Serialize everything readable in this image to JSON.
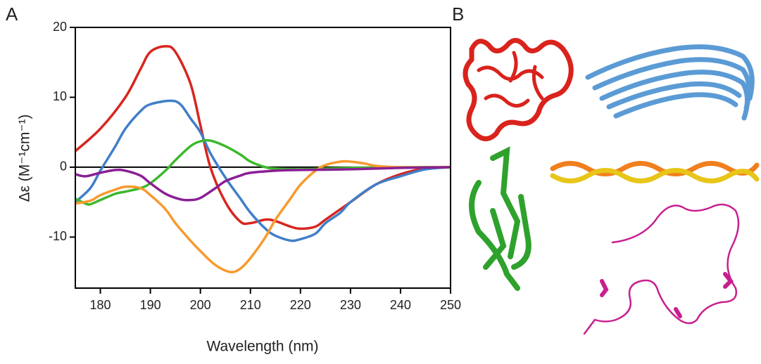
{
  "chart_data": {
    "type": "line",
    "panel_labels": [
      "A",
      "B"
    ],
    "xlabel": "Wavelength (nm)",
    "ylabel": "Δε (M⁻¹cm⁻¹)",
    "xlim": [
      175,
      250
    ],
    "xticks": [
      180,
      190,
      200,
      210,
      220,
      230,
      240,
      250
    ],
    "ylim": [
      -17.3,
      20
    ],
    "yticks": [
      -10,
      0,
      10,
      20
    ],
    "hline": 0,
    "series": [
      {
        "color": "#d7261e",
        "x": [
          175,
          180,
          185,
          188,
          190,
          193,
          195,
          198,
          200,
          202,
          205,
          208,
          210,
          213,
          215,
          218,
          220,
          223,
          225,
          230,
          235,
          240,
          245,
          250
        ],
        "values": [
          2.3,
          5.5,
          10,
          14,
          16.5,
          17.3,
          16.5,
          12,
          6,
          0,
          -5,
          -7.8,
          -8,
          -7.5,
          -7.7,
          -8.5,
          -8.8,
          -8.5,
          -7.5,
          -5,
          -2.5,
          -1,
          -0.2,
          0
        ]
      },
      {
        "color": "#3f7fc8",
        "x": [
          175,
          178,
          180,
          183,
          185,
          188,
          190,
          194,
          196,
          198,
          200,
          202,
          205,
          208,
          210,
          213,
          215,
          218,
          220,
          223,
          225,
          228,
          230,
          235,
          240,
          245,
          250
        ],
        "values": [
          -5,
          -3,
          -0.5,
          3,
          5.5,
          8,
          9,
          9.5,
          9,
          7,
          5,
          2,
          -1.5,
          -4.5,
          -6.5,
          -8.8,
          -9.8,
          -10.5,
          -10.3,
          -9.5,
          -8,
          -6.5,
          -5,
          -2.5,
          -1.3,
          -0.3,
          0
        ]
      },
      {
        "color": "#3cb82c",
        "x": [
          175,
          177,
          178,
          180,
          183,
          185,
          188,
          190,
          193,
          195,
          198,
          200,
          202,
          205,
          208,
          210,
          213,
          215,
          220,
          230,
          240,
          250
        ],
        "values": [
          -4.5,
          -5.2,
          -5.3,
          -4.7,
          -3.8,
          -3.5,
          -3,
          -2.3,
          -0.5,
          1,
          3,
          3.7,
          3.8,
          3,
          1.8,
          0.8,
          0,
          -0.2,
          -0.3,
          -0.1,
          0,
          0
        ]
      },
      {
        "color": "#f79a2e",
        "x": [
          175,
          178,
          180,
          183,
          185,
          188,
          190,
          193,
          195,
          198,
          200,
          203,
          206,
          208,
          210,
          213,
          215,
          218,
          220,
          223,
          225,
          228,
          230,
          233,
          235,
          240,
          250
        ],
        "values": [
          -5.2,
          -4.8,
          -4,
          -3.2,
          -2.8,
          -3,
          -4,
          -6,
          -8,
          -10.5,
          -12,
          -14,
          -15,
          -14.5,
          -13,
          -10,
          -7.5,
          -4.5,
          -2.5,
          -0.5,
          0.3,
          0.8,
          0.8,
          0.5,
          0.2,
          0,
          0
        ]
      },
      {
        "color": "#8a1f95",
        "x": [
          175,
          177,
          180,
          183,
          185,
          188,
          190,
          193,
          196,
          198,
          200,
          203,
          205,
          208,
          210,
          215,
          220,
          230,
          240,
          250
        ],
        "values": [
          -1,
          -1.3,
          -0.8,
          -0.4,
          -0.5,
          -1.2,
          -2.3,
          -3.8,
          -4.6,
          -4.7,
          -4.4,
          -3,
          -2,
          -1.2,
          -0.8,
          -0.5,
          -0.4,
          -0.3,
          -0.1,
          0
        ]
      }
    ]
  }
}
